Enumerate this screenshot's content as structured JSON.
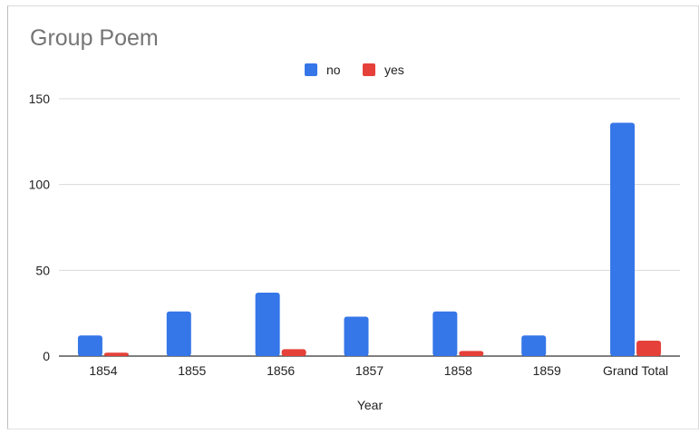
{
  "chart_data": {
    "type": "bar",
    "title": "Group Poem",
    "xlabel": "Year",
    "ylabel": "",
    "categories": [
      "1854",
      "1855",
      "1856",
      "1857",
      "1858",
      "1859",
      "Grand Total"
    ],
    "series": [
      {
        "name": "no",
        "color": "#3576e8",
        "values": [
          12,
          26,
          37,
          23,
          26,
          12,
          136
        ]
      },
      {
        "name": "yes",
        "color": "#e5413a",
        "values": [
          2,
          0,
          4,
          0,
          3,
          0,
          9
        ]
      }
    ],
    "ylim": [
      0,
      150
    ],
    "yticks": [
      "0",
      "50",
      "100",
      "150"
    ],
    "grid": true,
    "legend_position": "top-center",
    "colors": {
      "axis": "#333333",
      "grid": "#d9d9d9",
      "title": "#757575",
      "text": "#222222"
    }
  }
}
